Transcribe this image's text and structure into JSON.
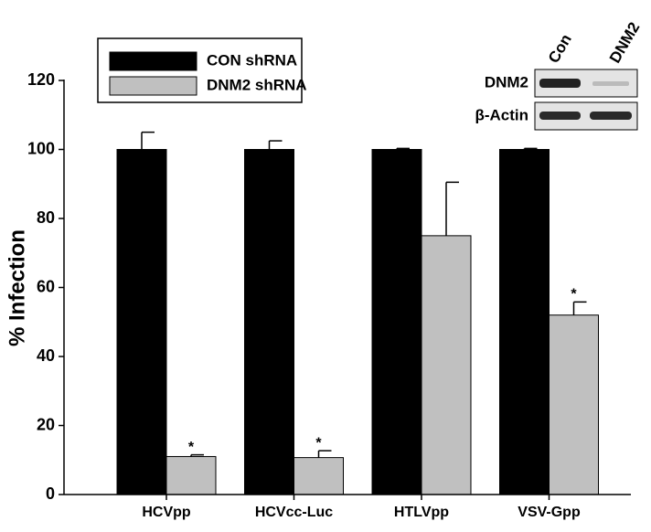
{
  "chart_data": {
    "type": "bar",
    "y_label": "% Infection",
    "categories": [
      "HCVpp",
      "HCVcc-Luc",
      "HTLVpp",
      "VSV-Gpp"
    ],
    "series": [
      {
        "name": "CON shRNA",
        "color": "#000000",
        "values": [
          100,
          100,
          100,
          100
        ],
        "errors": [
          5,
          2.5,
          0.3,
          0.3
        ]
      },
      {
        "name": "DNM2 shRNA",
        "color": "#c0c0c0",
        "values": [
          11,
          10.7,
          75,
          52
        ],
        "errors": [
          0.5,
          2,
          15.5,
          3.8
        ],
        "significance": [
          "*",
          "*",
          null,
          "*"
        ]
      }
    ],
    "ylim": [
      0,
      120
    ],
    "yticks": [
      0,
      20,
      40,
      60,
      80,
      100,
      120
    ],
    "inset": {
      "columns": [
        "Con",
        "DNM2"
      ],
      "rows": [
        "DNM2",
        "β-Actin"
      ]
    }
  }
}
